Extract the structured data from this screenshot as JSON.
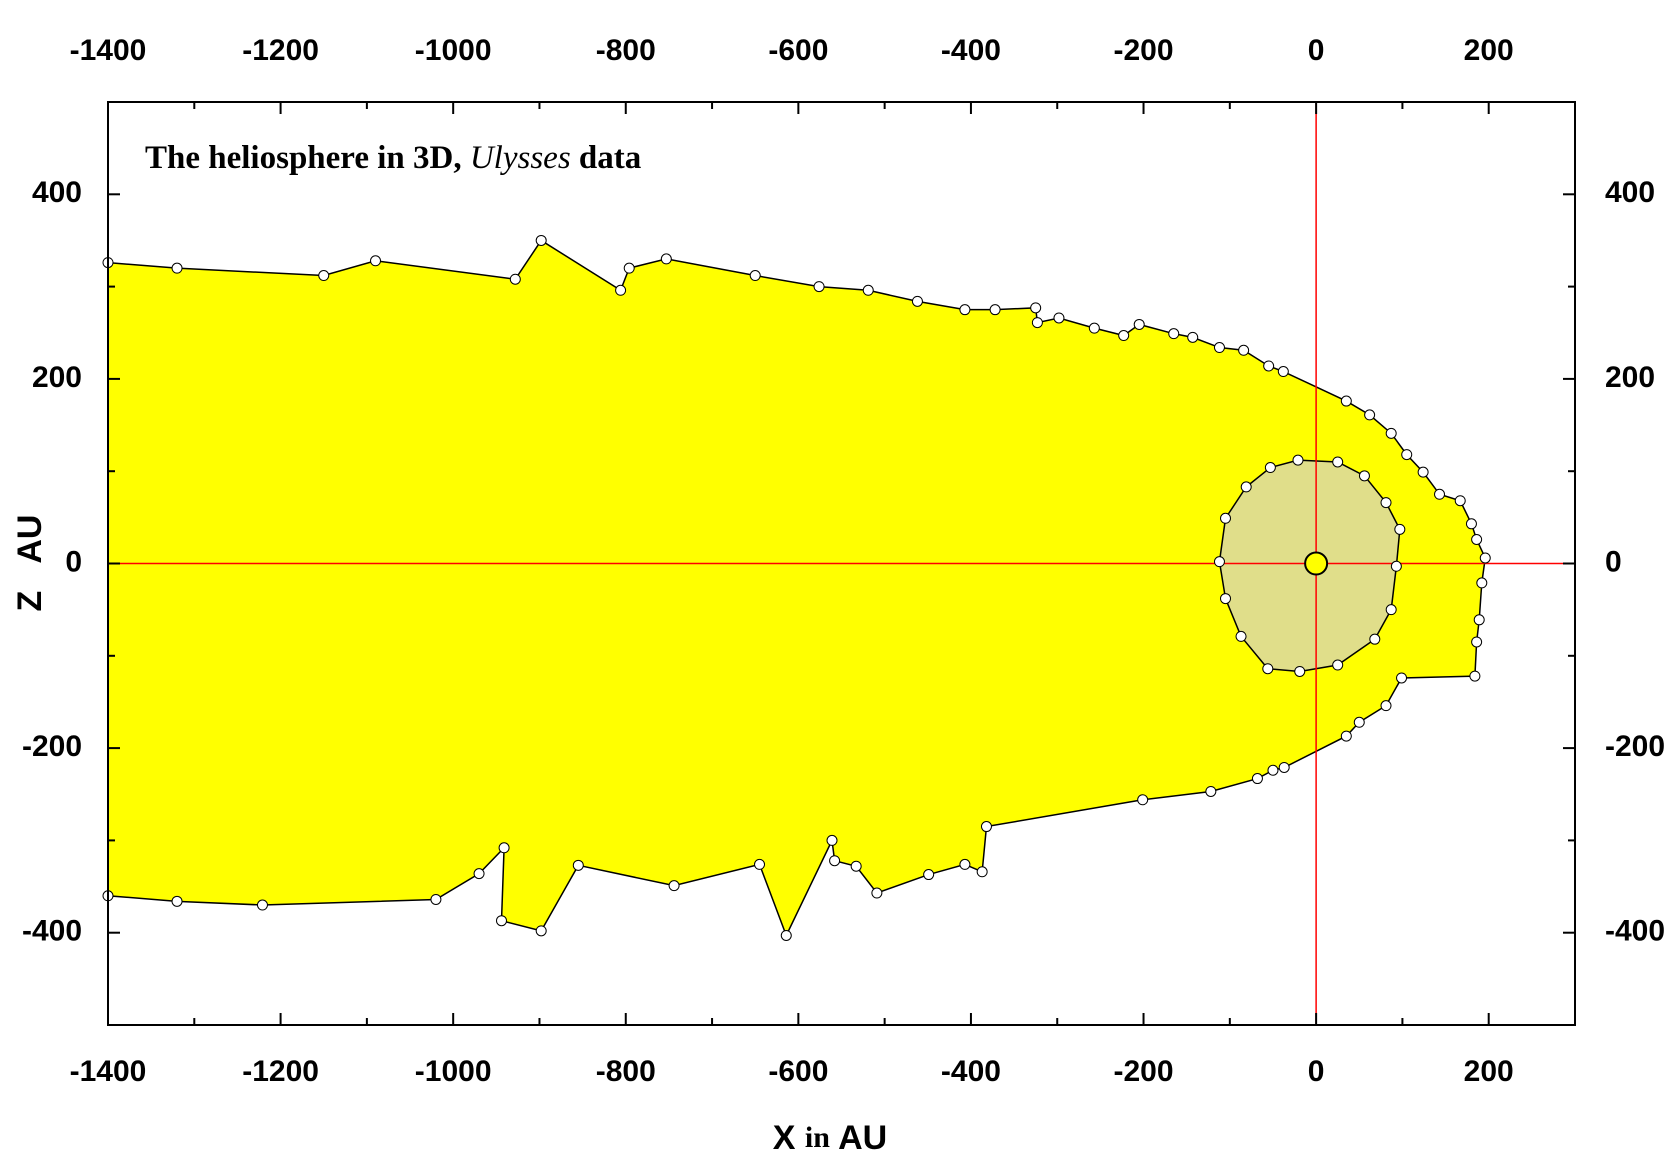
{
  "chart_data": {
    "type": "scatter",
    "title": [
      "The heliosphere in 3D,",
      "Ulysses",
      "data"
    ],
    "x_label": [
      "X",
      "in",
      "AU"
    ],
    "y_label": "Z   AU",
    "xlim": [
      -1400,
      300
    ],
    "ylim": [
      -500,
      500
    ],
    "xticks": [
      -1400,
      -1200,
      -1000,
      -800,
      -600,
      -400,
      -200,
      0,
      200
    ],
    "yticks": [
      -400,
      -200,
      0,
      200,
      400
    ],
    "xminorticks": [
      -1300,
      -1100,
      -900,
      -700,
      -500,
      -300,
      -100,
      100
    ],
    "yminorticks": [
      -300,
      -100,
      100,
      300
    ],
    "reference_color": "#ff0000",
    "series": [
      {
        "shape": "polygon",
        "color": "#ffff00",
        "marker_color": "#ffffff",
        "x": [
          -1400,
          -1320,
          -1150,
          -1090,
          -928,
          -898,
          -806,
          -796,
          -753,
          -650,
          -576,
          -519,
          -462,
          -407,
          -372,
          -325,
          -323,
          -298,
          -257,
          -223,
          -205,
          -165,
          -143,
          -112,
          -84,
          -55,
          -38,
          35,
          62,
          87,
          105,
          124,
          143,
          167,
          180,
          186,
          196,
          192,
          189,
          186,
          184,
          99,
          81,
          50,
          35,
          -37,
          -50,
          -68,
          -122,
          -201,
          -382,
          -387,
          -407,
          -449,
          -509,
          -533,
          -558,
          -561,
          -614,
          -645,
          -744,
          -855,
          -898,
          -944,
          -941,
          -970,
          -1020,
          -1221,
          -1320,
          -1400
        ],
        "y": [
          326,
          320,
          312,
          328,
          308,
          350,
          296,
          320,
          330,
          312,
          300,
          296,
          284,
          275,
          275,
          277,
          261,
          266,
          255,
          247,
          259,
          249,
          245,
          234,
          231,
          214,
          208,
          176,
          161,
          141,
          118,
          99,
          75,
          68,
          43,
          26,
          6,
          -21,
          -61,
          -85,
          -122,
          -124,
          -154,
          -172,
          -187,
          -221,
          -224,
          -233,
          -247,
          -256,
          -285,
          -334,
          -326,
          -337,
          -357,
          -328,
          -322,
          -300,
          -403,
          -326,
          -349,
          -327,
          -398,
          -387,
          -308,
          -336,
          -364,
          -370,
          -366,
          -360
        ]
      },
      {
        "shape": "polygon",
        "color": "#e0de8a",
        "marker_color": "#ffffff",
        "x": [
          -21,
          25,
          56,
          81,
          97,
          93,
          87,
          68,
          25,
          -19,
          -56,
          -87,
          -105,
          -112,
          -105,
          -81,
          -53
        ],
        "y": [
          112,
          110,
          95,
          66,
          37,
          -3,
          -50,
          -82,
          -110,
          -117,
          -114,
          -79,
          -38,
          2,
          49,
          83,
          104
        ]
      },
      {
        "shape": "point",
        "color": "#ffff00",
        "x": [
          0
        ],
        "y": [
          0
        ]
      }
    ]
  }
}
